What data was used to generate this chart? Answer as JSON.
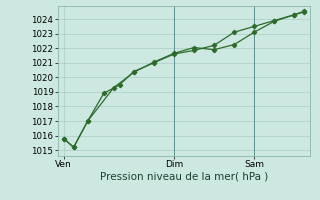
{
  "line1_x": [
    0,
    0.5,
    1.2,
    2.0,
    2.8,
    3.5,
    4.5,
    5.5,
    6.5,
    7.5,
    8.5,
    9.5,
    10.5,
    11.5,
    12.0
  ],
  "line1_y": [
    1015.8,
    1015.2,
    1017.0,
    1018.9,
    1019.5,
    1020.4,
    1021.0,
    1021.6,
    1021.85,
    1022.2,
    1023.1,
    1023.5,
    1023.9,
    1024.3,
    1024.5
  ],
  "line2_x": [
    0,
    0.5,
    1.2,
    2.5,
    3.5,
    4.5,
    5.5,
    6.5,
    7.5,
    8.5,
    9.5,
    10.5,
    11.5,
    12.0
  ],
  "line2_y": [
    1015.8,
    1015.2,
    1017.0,
    1019.3,
    1020.35,
    1021.05,
    1021.65,
    1022.05,
    1021.9,
    1022.25,
    1023.1,
    1023.85,
    1024.3,
    1024.55
  ],
  "line_color": "#2d6b2d",
  "bg_color": "#cce8e0",
  "grid_color": "#aaccC4",
  "xlabel": "Pression niveau de la mer( hPa )",
  "ylim_min": 1014.6,
  "ylim_max": 1024.9,
  "yticks": [
    1015,
    1016,
    1017,
    1018,
    1019,
    1020,
    1021,
    1022,
    1023,
    1024
  ],
  "xlim_min": -0.3,
  "xlim_max": 12.3,
  "ven_x": 0.0,
  "dim_x": 5.5,
  "sam_x": 9.5,
  "vline_color": "#5a9090",
  "spine_color": "#8ab5ad",
  "xlabel_color": "#1a4030",
  "xlabel_fontsize": 7.5,
  "ytick_fontsize": 6.2,
  "xtick_fontsize": 6.5
}
